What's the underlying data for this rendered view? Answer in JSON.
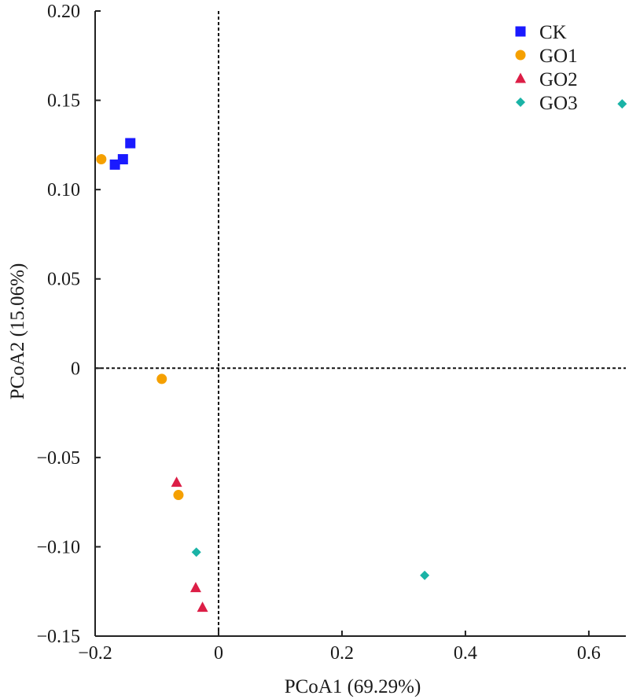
{
  "chart_data": {
    "type": "scatter",
    "title": "",
    "xlabel": "PCoA1 (69.29%)",
    "ylabel": "PCoA2 (15.06%)",
    "xlim": [
      -0.2,
      0.66
    ],
    "ylim": [
      -0.15,
      0.2
    ],
    "x_ticks": [
      -0.2,
      0,
      0.2,
      0.4,
      0.6
    ],
    "x_tick_labels": [
      "−0.2",
      "0",
      "0.2",
      "0.4",
      "0.6"
    ],
    "y_ticks": [
      0.2,
      0.15,
      0.1,
      0.05,
      0,
      -0.05,
      -0.1,
      -0.15
    ],
    "y_tick_labels": [
      "0.20",
      "0.15",
      "0.10",
      "0.05",
      "0",
      "−0.05",
      "−0.10",
      "−0.15"
    ],
    "grid": false,
    "reference_lines": {
      "x": 0,
      "y": 0,
      "style": "dashed"
    },
    "legend_position": "top-right",
    "series": [
      {
        "name": "CK",
        "marker": "square",
        "color": "#1a1aff",
        "points": [
          {
            "x": -0.168,
            "y": 0.114
          },
          {
            "x": -0.155,
            "y": 0.117
          },
          {
            "x": -0.143,
            "y": 0.126
          }
        ]
      },
      {
        "name": "GO1",
        "marker": "circle",
        "color": "#f5a000",
        "points": [
          {
            "x": -0.19,
            "y": 0.117
          },
          {
            "x": -0.092,
            "y": -0.006
          },
          {
            "x": -0.065,
            "y": -0.071
          }
        ]
      },
      {
        "name": "GO2",
        "marker": "triangle",
        "color": "#dc1e46",
        "points": [
          {
            "x": -0.068,
            "y": -0.064
          },
          {
            "x": -0.037,
            "y": -0.123
          },
          {
            "x": -0.026,
            "y": -0.134
          }
        ]
      },
      {
        "name": "GO3",
        "marker": "diamond",
        "color": "#1ab3a6",
        "points": [
          {
            "x": -0.036,
            "y": -0.103
          },
          {
            "x": 0.334,
            "y": -0.116
          },
          {
            "x": 0.654,
            "y": 0.148
          }
        ]
      }
    ]
  }
}
